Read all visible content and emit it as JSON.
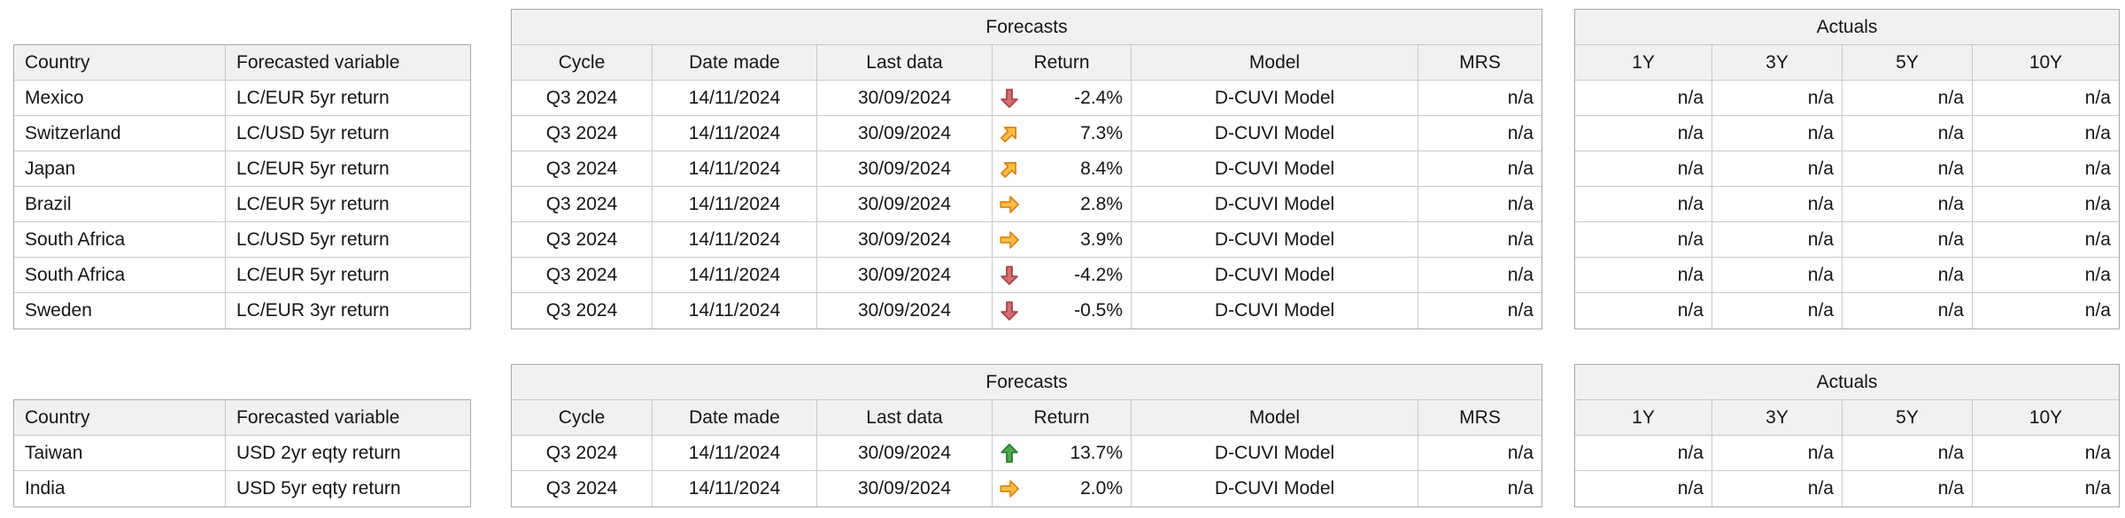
{
  "colors": {
    "header_fill": "#f1f1f1",
    "grid_line": "#c9c9c9",
    "outer_border": "#a9a9a9",
    "arrow_up_fill": "#4aa94e",
    "arrow_up_stroke": "#2a7a31",
    "arrow_down_fill": "#d06e72",
    "arrow_down_stroke": "#a84248",
    "arrow_flat_fill": "#fcbe45",
    "arrow_flat_stroke": "#e0820e"
  },
  "group1": {
    "countries": {
      "headers": [
        "Country",
        "Forecasted variable"
      ],
      "rows": [
        [
          "Mexico",
          "LC/EUR 5yr return"
        ],
        [
          "Switzerland",
          "LC/USD 5yr return"
        ],
        [
          "Japan",
          "LC/EUR 5yr return"
        ],
        [
          "Brazil",
          "LC/EUR 5yr return"
        ],
        [
          "South Africa",
          "LC/USD 5yr return"
        ],
        [
          "South Africa",
          "LC/EUR 5yr return"
        ],
        [
          "Sweden",
          "LC/EUR 3yr return"
        ]
      ]
    },
    "forecasts": {
      "title": "Forecasts",
      "headers": [
        "Cycle",
        "Date made",
        "Last data",
        "Return",
        "Model",
        "MRS"
      ],
      "rows": [
        [
          "Q3 2024",
          "14/11/2024",
          "30/09/2024",
          {
            "trend": "down",
            "value": "-2.4%"
          },
          "D-CUVI Model",
          "n/a"
        ],
        [
          "Q3 2024",
          "14/11/2024",
          "30/09/2024",
          {
            "trend": "ne",
            "value": "7.3%"
          },
          "D-CUVI Model",
          "n/a"
        ],
        [
          "Q3 2024",
          "14/11/2024",
          "30/09/2024",
          {
            "trend": "ne",
            "value": "8.4%"
          },
          "D-CUVI Model",
          "n/a"
        ],
        [
          "Q3 2024",
          "14/11/2024",
          "30/09/2024",
          {
            "trend": "right",
            "value": "2.8%"
          },
          "D-CUVI Model",
          "n/a"
        ],
        [
          "Q3 2024",
          "14/11/2024",
          "30/09/2024",
          {
            "trend": "right",
            "value": "3.9%"
          },
          "D-CUVI Model",
          "n/a"
        ],
        [
          "Q3 2024",
          "14/11/2024",
          "30/09/2024",
          {
            "trend": "down",
            "value": "-4.2%"
          },
          "D-CUVI Model",
          "n/a"
        ],
        [
          "Q3 2024",
          "14/11/2024",
          "30/09/2024",
          {
            "trend": "down",
            "value": "-0.5%"
          },
          "D-CUVI Model",
          "n/a"
        ]
      ]
    },
    "actuals": {
      "title": "Actuals",
      "headers": [
        "1Y",
        "3Y",
        "5Y",
        "10Y"
      ],
      "rows": [
        [
          "n/a",
          "n/a",
          "n/a",
          "n/a"
        ],
        [
          "n/a",
          "n/a",
          "n/a",
          "n/a"
        ],
        [
          "n/a",
          "n/a",
          "n/a",
          "n/a"
        ],
        [
          "n/a",
          "n/a",
          "n/a",
          "n/a"
        ],
        [
          "n/a",
          "n/a",
          "n/a",
          "n/a"
        ],
        [
          "n/a",
          "n/a",
          "n/a",
          "n/a"
        ],
        [
          "n/a",
          "n/a",
          "n/a",
          "n/a"
        ]
      ]
    }
  },
  "group2": {
    "countries": {
      "headers": [
        "Country",
        "Forecasted variable"
      ],
      "rows": [
        [
          "Taiwan",
          "USD 2yr eqty return"
        ],
        [
          "India",
          "USD 5yr eqty return"
        ]
      ]
    },
    "forecasts": {
      "title": "Forecasts",
      "headers": [
        "Cycle",
        "Date made",
        "Last data",
        "Return",
        "Model",
        "MRS"
      ],
      "rows": [
        [
          "Q3 2024",
          "14/11/2024",
          "30/09/2024",
          {
            "trend": "up",
            "value": "13.7%"
          },
          "D-CUVI Model",
          "n/a"
        ],
        [
          "Q3 2024",
          "14/11/2024",
          "30/09/2024",
          {
            "trend": "right",
            "value": "2.0%"
          },
          "D-CUVI Model",
          "n/a"
        ]
      ]
    },
    "actuals": {
      "title": "Actuals",
      "headers": [
        "1Y",
        "3Y",
        "5Y",
        "10Y"
      ],
      "rows": [
        [
          "n/a",
          "n/a",
          "n/a",
          "n/a"
        ],
        [
          "n/a",
          "n/a",
          "n/a",
          "n/a"
        ]
      ]
    }
  }
}
